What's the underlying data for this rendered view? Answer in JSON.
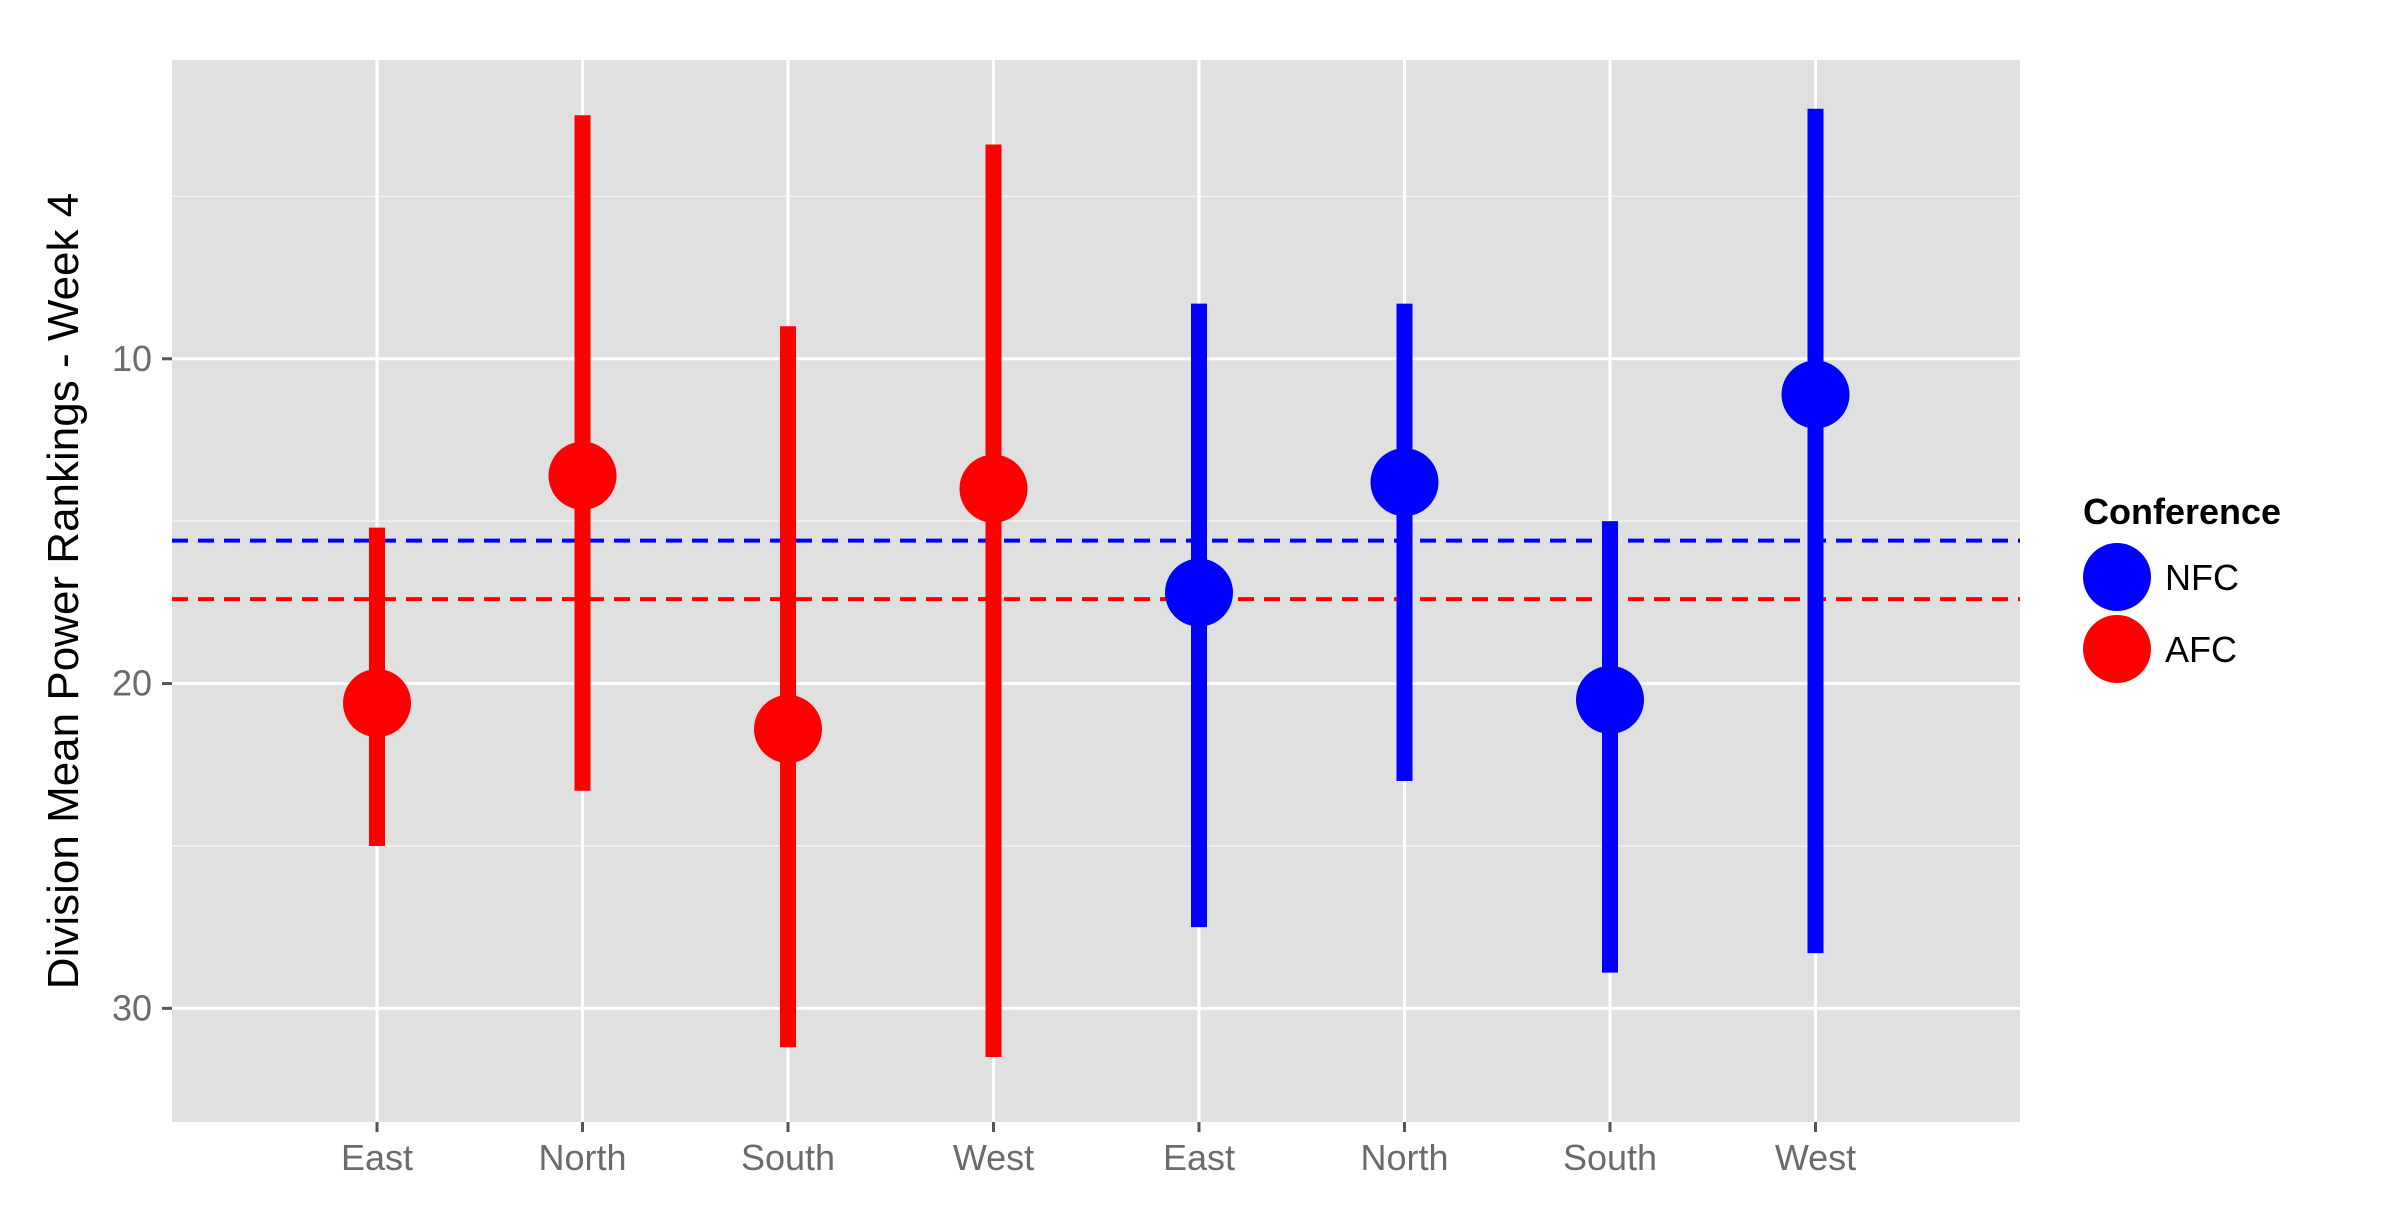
{
  "chart_data": {
    "type": "scatter",
    "title": "",
    "xlabel": "",
    "ylabel": "Division Mean Power Rankings - Week 4",
    "y_reversed": true,
    "ylim": [
      0.8,
      33.5
    ],
    "y_ticks": [
      10,
      20,
      30
    ],
    "y_tick_labels": [
      "10",
      "20",
      "30"
    ],
    "grid": true,
    "background": "#e0e0e0",
    "categories": [
      "East",
      "North",
      "South",
      "West",
      "East",
      "North",
      "South",
      "West"
    ],
    "series": [
      {
        "name": "AFC",
        "color": "#ff0000",
        "points": [
          {
            "x": 1,
            "label": "East",
            "mean": 20.6,
            "min": 15.2,
            "max": 25.0
          },
          {
            "x": 2,
            "label": "North",
            "mean": 13.6,
            "min": 2.5,
            "max": 23.3
          },
          {
            "x": 3,
            "label": "South",
            "mean": 21.4,
            "min": 9.0,
            "max": 31.2
          },
          {
            "x": 4,
            "label": "West",
            "mean": 14.0,
            "min": 3.4,
            "max": 31.5
          }
        ]
      },
      {
        "name": "NFC",
        "color": "#0000ff",
        "points": [
          {
            "x": 5,
            "label": "East",
            "mean": 17.2,
            "min": 8.3,
            "max": 27.5
          },
          {
            "x": 6,
            "label": "North",
            "mean": 13.8,
            "min": 8.3,
            "max": 23.0
          },
          {
            "x": 7,
            "label": "South",
            "mean": 20.5,
            "min": 15.0,
            "max": 28.9
          },
          {
            "x": 8,
            "label": "West",
            "mean": 11.1,
            "min": 2.3,
            "max": 28.3
          }
        ]
      }
    ],
    "reference_lines": [
      {
        "series": "NFC",
        "value": 15.6,
        "color": "#0000ff",
        "style": "dashed"
      },
      {
        "series": "AFC",
        "value": 17.4,
        "color": "#ff0000",
        "style": "dashed"
      }
    ],
    "legend": {
      "title": "Conference",
      "position": "right",
      "entries": [
        {
          "label": "NFC",
          "color": "#0000ff"
        },
        {
          "label": "AFC",
          "color": "#ff0000"
        }
      ]
    }
  }
}
